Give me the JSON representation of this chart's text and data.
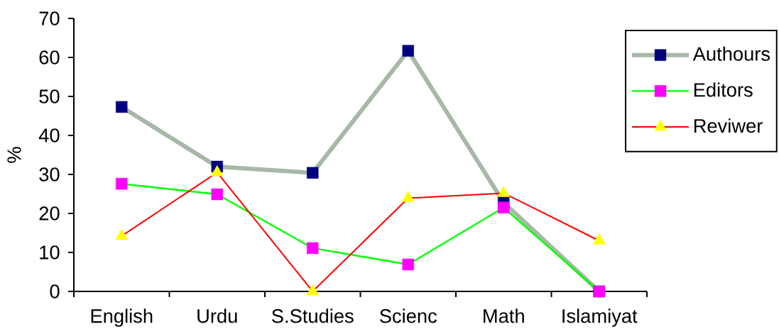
{
  "chart_data": {
    "type": "line",
    "categories": [
      "English",
      "Urdu",
      "S.Studies",
      "Scienc",
      "Math",
      "Islamiyat"
    ],
    "ylabel": "%",
    "ylim": [
      0,
      70
    ],
    "yticks": [
      0,
      10,
      20,
      30,
      40,
      50,
      60,
      70
    ],
    "legend": "top right",
    "series": [
      {
        "name": "Authours",
        "color": "#a8b8a8",
        "marker": "square",
        "colors": [
          "#000080",
          "#000080",
          "#000080",
          "#000080",
          "#000080",
          "#000080"
        ],
        "values": [
          47.3,
          32.0,
          30.4,
          61.7,
          22.8,
          0
        ]
      },
      {
        "name": "Editors",
        "color": "#00ff00",
        "marker": "square",
        "colors": [
          "#ff00ff",
          "#ff00ff",
          "#ff00ff",
          "#ff00ff",
          "#ff00ff",
          "#ff00ff"
        ],
        "values": [
          27.6,
          24.9,
          11.1,
          6.9,
          21.5,
          0
        ]
      },
      {
        "name": "Reviwer",
        "color": "#ff0000",
        "marker": "triangle",
        "colors": [
          "#ffff00",
          "#ffff00",
          "#ffff00",
          "#ffff00",
          "#ffff00",
          "#ffff00"
        ],
        "values": [
          14.2,
          30.5,
          0,
          23.9,
          25.2,
          13.0
        ]
      }
    ]
  }
}
